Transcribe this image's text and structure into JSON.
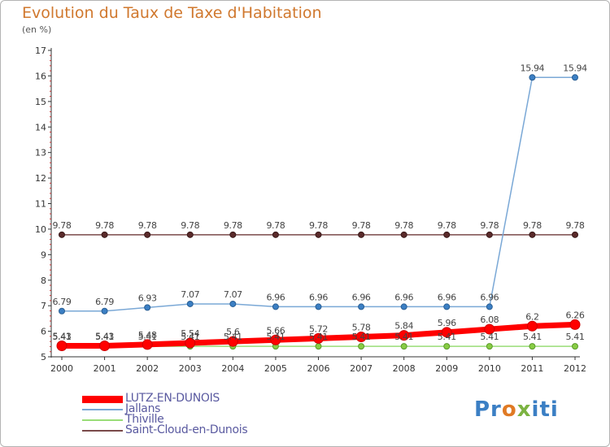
{
  "header": {
    "title": "Evolution du Taux de Taxe d'Habitation",
    "subtitle": "(en %)"
  },
  "logo": {
    "text": "Proxiti"
  },
  "chart_data": {
    "type": "line",
    "title": "Evolution du Taux de Taxe d'Habitation",
    "subtitle": "(en %)",
    "xlabel": "",
    "ylabel": "",
    "x": [
      "2000",
      "2001",
      "2002",
      "2003",
      "2004",
      "2005",
      "2006",
      "2007",
      "2008",
      "2009",
      "2010",
      "2011",
      "2012"
    ],
    "ylim": [
      5,
      17
    ],
    "yticks": [
      5,
      6,
      7,
      8,
      9,
      10,
      11,
      12,
      13,
      14,
      15,
      16,
      17
    ],
    "grid": false,
    "legend_position": "bottom-left",
    "series": [
      {
        "name": "LUTZ-EN-DUNOIS",
        "color": "#ff0000",
        "width": 7,
        "values": [
          5.43,
          5.43,
          5.48,
          5.54,
          5.6,
          5.66,
          5.72,
          5.78,
          5.84,
          5.96,
          6.08,
          6.2,
          6.26
        ],
        "labels": [
          "5.43",
          "5.43",
          "5.48",
          "5.54",
          "5.6",
          "5.66",
          "5.72",
          "5.78",
          "5.84",
          "5.96",
          "6.08",
          "6.2",
          "6.26"
        ]
      },
      {
        "name": "Jallans",
        "color": "#7aa8d6",
        "width": 1.5,
        "values": [
          6.79,
          6.79,
          6.93,
          7.07,
          7.07,
          6.96,
          6.96,
          6.96,
          6.96,
          6.96,
          6.96,
          15.94,
          15.94
        ],
        "labels": [
          "6.79",
          "6.79",
          "6.93",
          "7.07",
          "7.07",
          "6.96",
          "6.96",
          "6.96",
          "6.96",
          "6.96",
          "6.96",
          "15.94",
          "15.94"
        ]
      },
      {
        "name": "Thiville",
        "color": "#99dd77",
        "width": 1.5,
        "values": [
          5.41,
          5.41,
          5.41,
          5.41,
          5.41,
          5.41,
          5.41,
          5.41,
          5.41,
          5.41,
          5.41,
          5.41,
          5.41
        ],
        "labels": [
          "5.41",
          "5.41",
          "5.41",
          "5.41",
          "5.41",
          "5.41",
          "5.41",
          "5.41",
          "5.41",
          "5.41",
          "5.41",
          "5.41",
          "5.41"
        ]
      },
      {
        "name": "Saint-Cloud-en-Dunois",
        "color": "#7a4a4a",
        "width": 1.5,
        "values": [
          9.78,
          9.78,
          9.78,
          9.78,
          9.78,
          9.78,
          9.78,
          9.78,
          9.78,
          9.78,
          9.78,
          9.78,
          9.78
        ],
        "labels": [
          "9.78",
          "9.78",
          "9.78",
          "9.78",
          "9.78",
          "9.78",
          "9.78",
          "9.78",
          "9.78",
          "9.78",
          "9.78",
          "9.78",
          "9.78"
        ]
      }
    ]
  }
}
